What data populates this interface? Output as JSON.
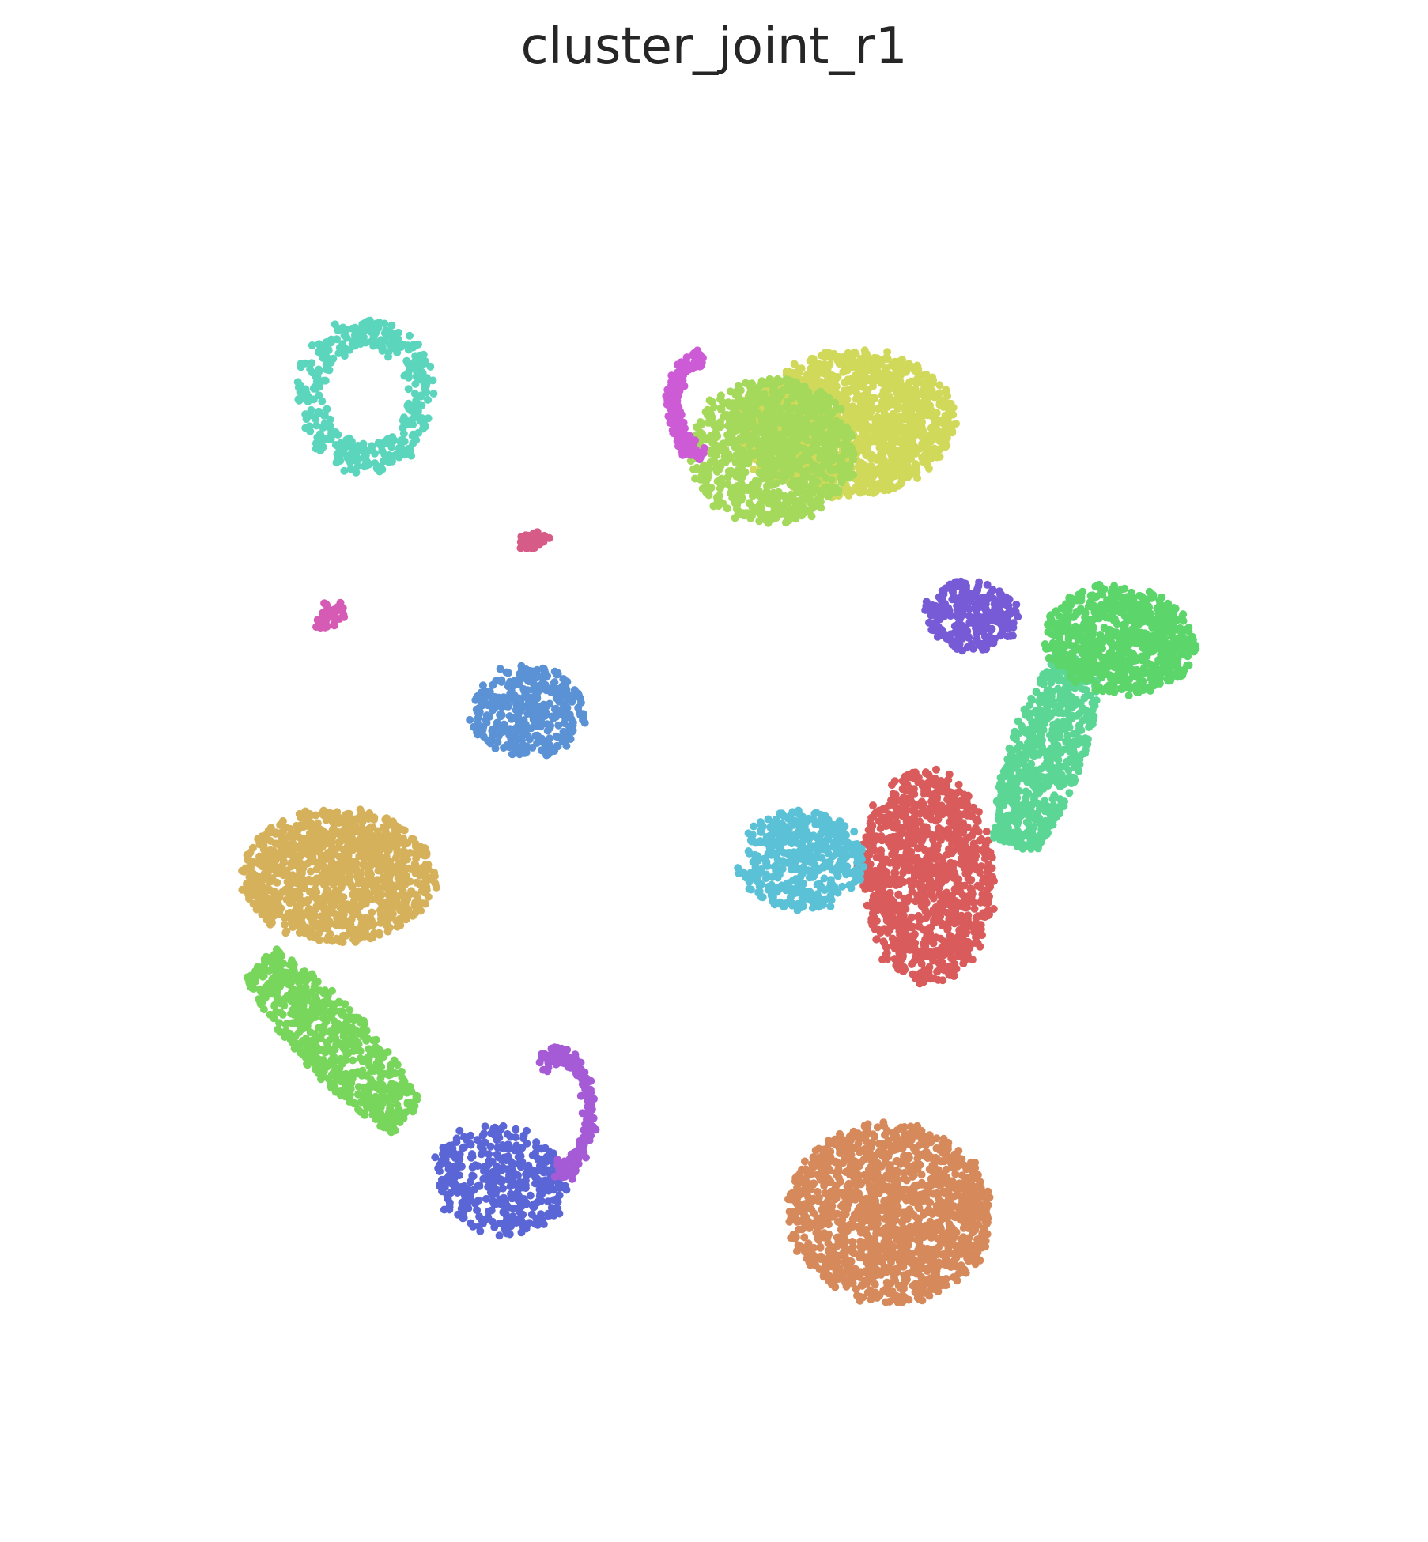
{
  "chart_data": {
    "type": "scatter",
    "title": "cluster_joint_r1",
    "xlabel": "",
    "ylabel": "",
    "axes_visible": false,
    "grid": false,
    "legend": "none",
    "xlim": [
      0,
      100
    ],
    "ylim": [
      0,
      100
    ],
    "series": [
      {
        "color": "#d68a5c",
        "n": 1400,
        "shape": "blob",
        "cx": 65.5,
        "cy": 16.9,
        "rx": 8.6,
        "ry": 7.2,
        "rot": -0.12
      },
      {
        "color": "#d95b5b",
        "n": 1100,
        "shape": "blob",
        "cx": 68.6,
        "cy": 44.0,
        "rx": 5.6,
        "ry": 8.6,
        "rot": 0.05
      },
      {
        "color": "#5bc1d6",
        "n": 450,
        "shape": "blob",
        "cx": 57.9,
        "cy": 45.3,
        "rx": 5.4,
        "ry": 4.0,
        "rot": 0.0
      },
      {
        "color": "#5bd695",
        "n": 650,
        "shape": "arm",
        "x0": 76.0,
        "y0": 46.5,
        "x1": 81.5,
        "y1": 61.5,
        "w": 3.2
      },
      {
        "color": "#5cd66a",
        "n": 750,
        "shape": "blob",
        "cx": 85.0,
        "cy": 63.0,
        "rx": 6.4,
        "ry": 4.3,
        "rot": -0.1
      },
      {
        "color": "#775bd6",
        "n": 280,
        "shape": "blob",
        "cx": 72.3,
        "cy": 65.0,
        "rx": 4.0,
        "ry": 2.8,
        "rot": 0.0
      },
      {
        "color": "#d1d95b",
        "n": 1500,
        "shape": "blob",
        "cx": 61.8,
        "cy": 80.5,
        "rx": 9.2,
        "ry": 5.8,
        "rot": 0.05
      },
      {
        "color": "#a5d95b",
        "n": 1000,
        "shape": "blob",
        "cx": 55.5,
        "cy": 78.3,
        "rx": 7.0,
        "ry": 5.8,
        "rot": 0.0
      },
      {
        "color": "#cd5bd6",
        "n": 160,
        "shape": "crescent",
        "cx": 49.5,
        "cy": 82.0,
        "rx": 2.8,
        "ry": 4.2,
        "rot": 0.0
      },
      {
        "color": "#5bd6bd",
        "n": 380,
        "shape": "ring",
        "cx": 21.0,
        "cy": 82.8,
        "rx": 5.5,
        "ry": 6.0,
        "rot": 0.0
      },
      {
        "color": "#d65b86",
        "n": 40,
        "shape": "blob",
        "cx": 35.0,
        "cy": 71.0,
        "rx": 1.3,
        "ry": 0.7,
        "rot": 0.2
      },
      {
        "color": "#d65bb4",
        "n": 35,
        "shape": "blob",
        "cx": 17.8,
        "cy": 65.0,
        "rx": 1.5,
        "ry": 0.9,
        "rot": 0.5
      },
      {
        "color": "#5b92d6",
        "n": 380,
        "shape": "blob",
        "cx": 34.8,
        "cy": 57.3,
        "rx": 4.8,
        "ry": 3.7,
        "rot": 0.0
      },
      {
        "color": "#d6b15b",
        "n": 1100,
        "shape": "blob",
        "cx": 18.6,
        "cy": 44.0,
        "rx": 8.2,
        "ry": 5.3,
        "rot": 0.0
      },
      {
        "color": "#77d65b",
        "n": 650,
        "shape": "arm",
        "x0": 12.0,
        "y0": 37.0,
        "x1": 24.5,
        "y1": 24.5,
        "w": 3.0
      },
      {
        "color": "#5b66d6",
        "n": 420,
        "shape": "blob",
        "cx": 32.4,
        "cy": 19.5,
        "rx": 5.6,
        "ry": 4.3,
        "rot": -0.25
      },
      {
        "color": "#a65bd6",
        "n": 200,
        "shape": "arc",
        "cx": 37.5,
        "cy": 25.0,
        "rx": 2.8,
        "ry": 5.2,
        "rot": 0.0
      }
    ]
  }
}
